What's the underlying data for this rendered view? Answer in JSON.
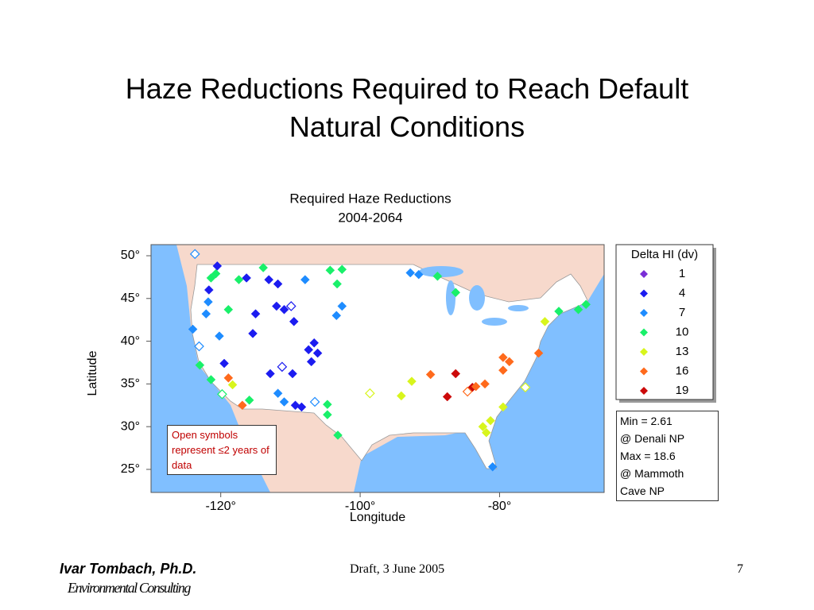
{
  "title": "Haze Reductions Required to Reach Default Natural Conditions",
  "chart_data": {
    "type": "scatter",
    "title": "Required Haze Reductions",
    "subtitle": "2004-2064",
    "xlabel": "Longitude",
    "ylabel": "Latitude",
    "xlim": [
      -130,
      -65
    ],
    "ylim": [
      22.3,
      51.3
    ],
    "xticks": [
      {
        "value": -120,
        "label": "-120°"
      },
      {
        "value": -100,
        "label": "-100°"
      },
      {
        "value": -80,
        "label": "-80°"
      }
    ],
    "yticks": [
      {
        "value": 25,
        "label": "25°"
      },
      {
        "value": 30,
        "label": "30°"
      },
      {
        "value": 35,
        "label": "35°"
      },
      {
        "value": 40,
        "label": "40°"
      },
      {
        "value": 45,
        "label": "45°"
      },
      {
        "value": 50,
        "label": "50°"
      }
    ],
    "x": [
      -124.0,
      -123.1,
      -122.1,
      -121.8,
      -121.7,
      -121.4,
      -120.5,
      -123.7,
      -120.7,
      -120.2,
      -119.5,
      -118.9,
      -121.4,
      -123.0,
      -119.8,
      -118.3,
      -116.9,
      -115.9,
      -117.4,
      -118.9,
      -116.3,
      -113.9,
      -113.1,
      -111.8,
      -115.0,
      -112.0,
      -110.9,
      -109.9,
      -109.5,
      -115.4,
      -107.9,
      -104.3,
      -102.6,
      -103.3,
      -102.6,
      -103.4,
      -107.4,
      -106.6,
      -106.1,
      -107.0,
      -111.2,
      -112.9,
      -109.7,
      -111.8,
      -110.9,
      -109.3,
      -108.4,
      -106.5,
      -104.7,
      -103.2,
      -104.7,
      -98.6,
      -94.1,
      -92.6,
      -92.8,
      -91.6,
      -88.9,
      -86.3,
      -89.9,
      -86.3,
      -87.5,
      -83.9,
      -83.4,
      -82.1,
      -84.6,
      -79.5,
      -78.6,
      -79.5,
      -74.4,
      -76.3,
      -79.5,
      -82.4,
      -81.3,
      -81.0,
      -73.5,
      -71.5,
      -68.7,
      -67.6,
      -81.9
    ],
    "values": [
      41.4,
      39.4,
      43.2,
      44.6,
      46.0,
      47.4,
      48.8,
      50.2,
      47.9,
      40.6,
      37.4,
      35.7,
      35.5,
      37.2,
      33.8,
      34.9,
      32.5,
      33.1,
      47.2,
      43.7,
      47.4,
      48.6,
      47.2,
      46.7,
      43.2,
      44.1,
      43.7,
      44.1,
      42.3,
      40.9,
      47.2,
      48.3,
      48.4,
      46.7,
      44.1,
      43.0,
      39.0,
      39.8,
      38.6,
      37.6,
      37.0,
      36.2,
      36.2,
      33.9,
      32.9,
      32.5,
      32.3,
      32.9,
      32.6,
      29.0,
      31.4,
      33.9,
      33.6,
      35.3,
      48.0,
      47.8,
      47.6,
      45.7,
      36.1,
      36.2,
      33.5,
      34.6,
      34.7,
      35.0,
      34.1,
      38.1,
      37.6,
      36.6,
      38.6,
      34.6,
      32.3,
      30.0,
      30.7,
      25.3,
      42.3,
      43.5,
      43.7,
      44.3,
      29.3
    ],
    "dv": [
      7,
      7,
      7,
      7,
      4,
      10,
      4,
      7,
      10,
      7,
      4,
      16,
      10,
      10,
      10,
      13,
      16,
      10,
      10,
      10,
      4,
      10,
      4,
      4,
      4,
      4,
      4,
      4,
      4,
      4,
      7,
      10,
      10,
      10,
      7,
      7,
      4,
      4,
      4,
      4,
      4,
      4,
      4,
      7,
      7,
      4,
      4,
      7,
      10,
      10,
      10,
      13,
      13,
      13,
      7,
      7,
      10,
      10,
      16,
      19,
      19,
      19,
      16,
      16,
      16,
      16,
      16,
      16,
      16,
      13,
      13,
      13,
      13,
      7,
      13,
      10,
      10,
      10,
      13
    ],
    "open": [
      false,
      true,
      false,
      false,
      false,
      false,
      false,
      true,
      false,
      false,
      false,
      false,
      false,
      false,
      true,
      false,
      false,
      false,
      false,
      false,
      false,
      false,
      false,
      false,
      false,
      false,
      false,
      true,
      false,
      false,
      false,
      false,
      false,
      false,
      false,
      false,
      false,
      false,
      false,
      false,
      true,
      false,
      false,
      false,
      false,
      false,
      false,
      true,
      false,
      false,
      false,
      true,
      false,
      false,
      false,
      false,
      false,
      false,
      false,
      false,
      false,
      false,
      false,
      false,
      true,
      false,
      false,
      false,
      false,
      true,
      false,
      false,
      false,
      false,
      false,
      false,
      false,
      false,
      false
    ],
    "legend": {
      "title": "Delta HI (dv)",
      "levels": [
        1,
        4,
        7,
        10,
        13,
        16,
        19
      ],
      "colors": [
        "#7a2fd6",
        "#1c1cf0",
        "#1e8cff",
        "#19f06a",
        "#d8f51c",
        "#ff6a1c",
        "#cc0a0a"
      ]
    },
    "annotation": "Open symbols represent ≤2 years of data",
    "stats": [
      "Min = 2.61",
      "@ Denali NP",
      "Max = 18.6",
      "@ Mammoth",
      "Cave NP"
    ]
  },
  "footer": {
    "author": "Ivar Tombach, Ph.D.",
    "company": "Environmental Consulting",
    "draft": "Draft, 3 June 2005",
    "page": "7"
  }
}
